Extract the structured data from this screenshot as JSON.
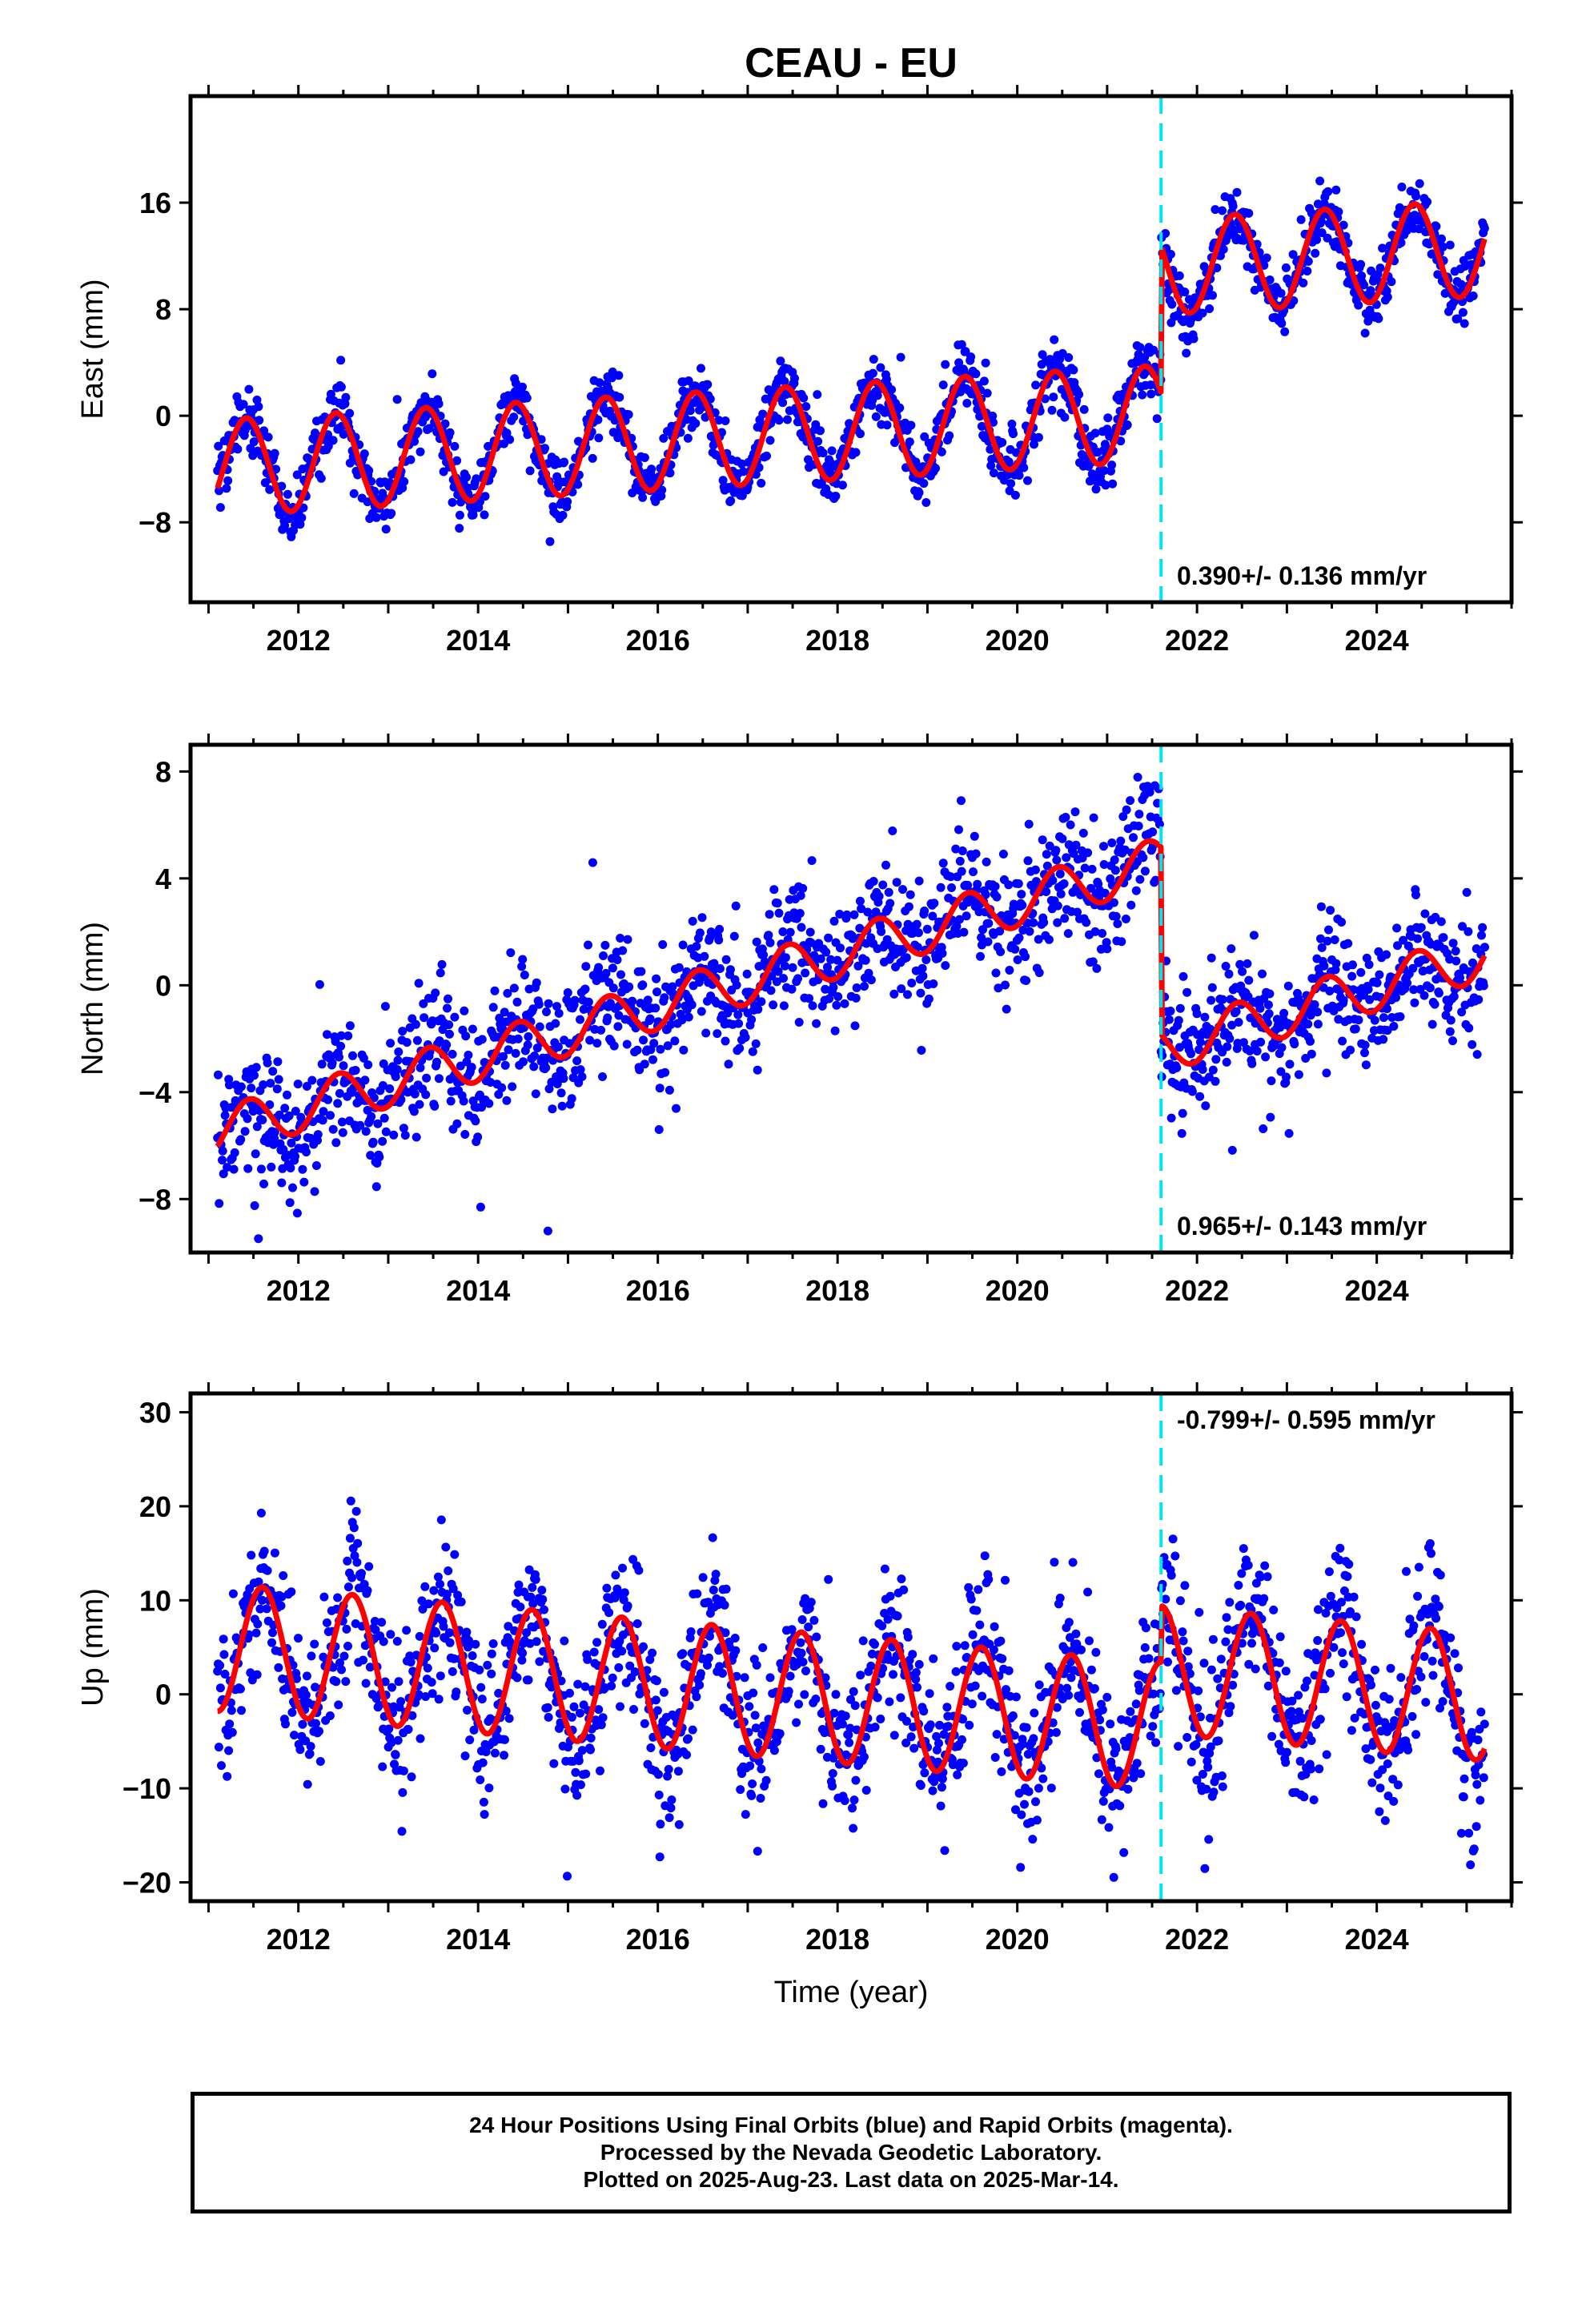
{
  "title": "CEAU - EU",
  "caption": [
    "24 Hour Positions Using Final Orbits (blue) and Rapid Orbits (magenta).",
    "Processed by the Nevada Geodetic Laboratory.",
    "Plotted on 2025-Aug-23. Last data on 2025-Mar-14."
  ],
  "colors": {
    "final_orbits": "#0000ff",
    "model_fit": "#ff0000",
    "equipment_change": "#00e5ee"
  },
  "chart_data": [
    {
      "type": "scatter",
      "component": "east",
      "ylabel": "East (mm)",
      "xlabel": "",
      "xlim": [
        2010.8,
        2025.5
      ],
      "ylim": [
        -14,
        24
      ],
      "xticks": [
        2012,
        2014,
        2016,
        2018,
        2020,
        2022,
        2024
      ],
      "yticks": [
        -8,
        0,
        8,
        16
      ],
      "velocity_label": "0.390+/- 0.136 mm/yr",
      "velocity_label_position": "bottom-right",
      "offset_epoch": 2021.6,
      "data_start": 2011.1,
      "data_end": 2025.2,
      "model": {
        "intercept_at_2011_1": -3.9,
        "rate": 0.39,
        "annual_amplitude": 3.6,
        "annual_peak_phase": 0.42,
        "offset_at_epoch": 11.0
      },
      "scatter_sd": 1.2,
      "grid": false
    },
    {
      "type": "scatter",
      "component": "north",
      "ylabel": "North (mm)",
      "xlabel": "",
      "xlim": [
        2010.8,
        2025.5
      ],
      "ylim": [
        -10,
        9
      ],
      "xticks": [
        2012,
        2014,
        2016,
        2018,
        2020,
        2022,
        2024
      ],
      "yticks": [
        -8,
        -4,
        0,
        4,
        8
      ],
      "velocity_label": "0.965+/- 0.143 mm/yr",
      "velocity_label_position": "bottom-right",
      "offset_epoch": 2021.6,
      "data_start": 2011.1,
      "data_end": 2025.2,
      "model": {
        "intercept_at_2011_1": -5.5,
        "rate": 0.965,
        "annual_amplitude": 0.9,
        "annual_peak_phase": 0.45,
        "offset_at_epoch": -7.0
      },
      "scatter_sd": 1.2,
      "grid": false
    },
    {
      "type": "scatter",
      "component": "up",
      "ylabel": "Up (mm)",
      "xlabel": "Time (year)",
      "xlim": [
        2010.8,
        2025.5
      ],
      "ylim": [
        -22,
        32
      ],
      "xticks": [
        2012,
        2014,
        2016,
        2018,
        2020,
        2022,
        2024
      ],
      "yticks": [
        -20,
        -10,
        0,
        10,
        20,
        30
      ],
      "velocity_label": "-0.799+/- 0.595 mm/yr",
      "velocity_label_position": "top-right",
      "offset_epoch": 2021.6,
      "data_start": 2011.1,
      "data_end": 2025.2,
      "model": {
        "intercept_at_2011_1": 5.0,
        "rate": -0.799,
        "annual_amplitude": 6.8,
        "annual_peak_phase": 0.6,
        "offset_at_epoch": 6.0
      },
      "scatter_sd": 4.0,
      "grid": false
    }
  ]
}
